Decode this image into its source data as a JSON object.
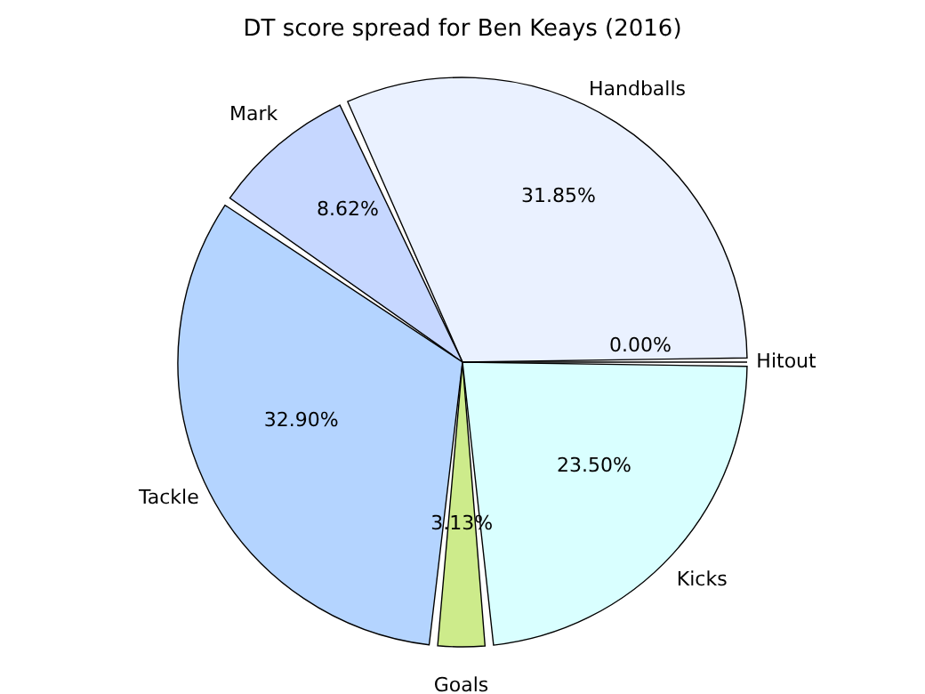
{
  "chart_data": {
    "type": "pie",
    "title": "DT score spread for Ben Keays (2016)",
    "categories": [
      "Hitout",
      "Handballs",
      "Mark",
      "Tackle",
      "Goals",
      "Kicks"
    ],
    "values": [
      0.0,
      31.85,
      8.62,
      32.9,
      3.13,
      23.5
    ],
    "value_labels": [
      "0.00%",
      "31.85%",
      "8.62%",
      "32.90%",
      "3.13%",
      "23.50%"
    ],
    "colors": [
      "#ffffff",
      "#eaf1ff",
      "#c6d7ff",
      "#b4d4ff",
      "#cdeb8b",
      "#d9ffff"
    ]
  }
}
